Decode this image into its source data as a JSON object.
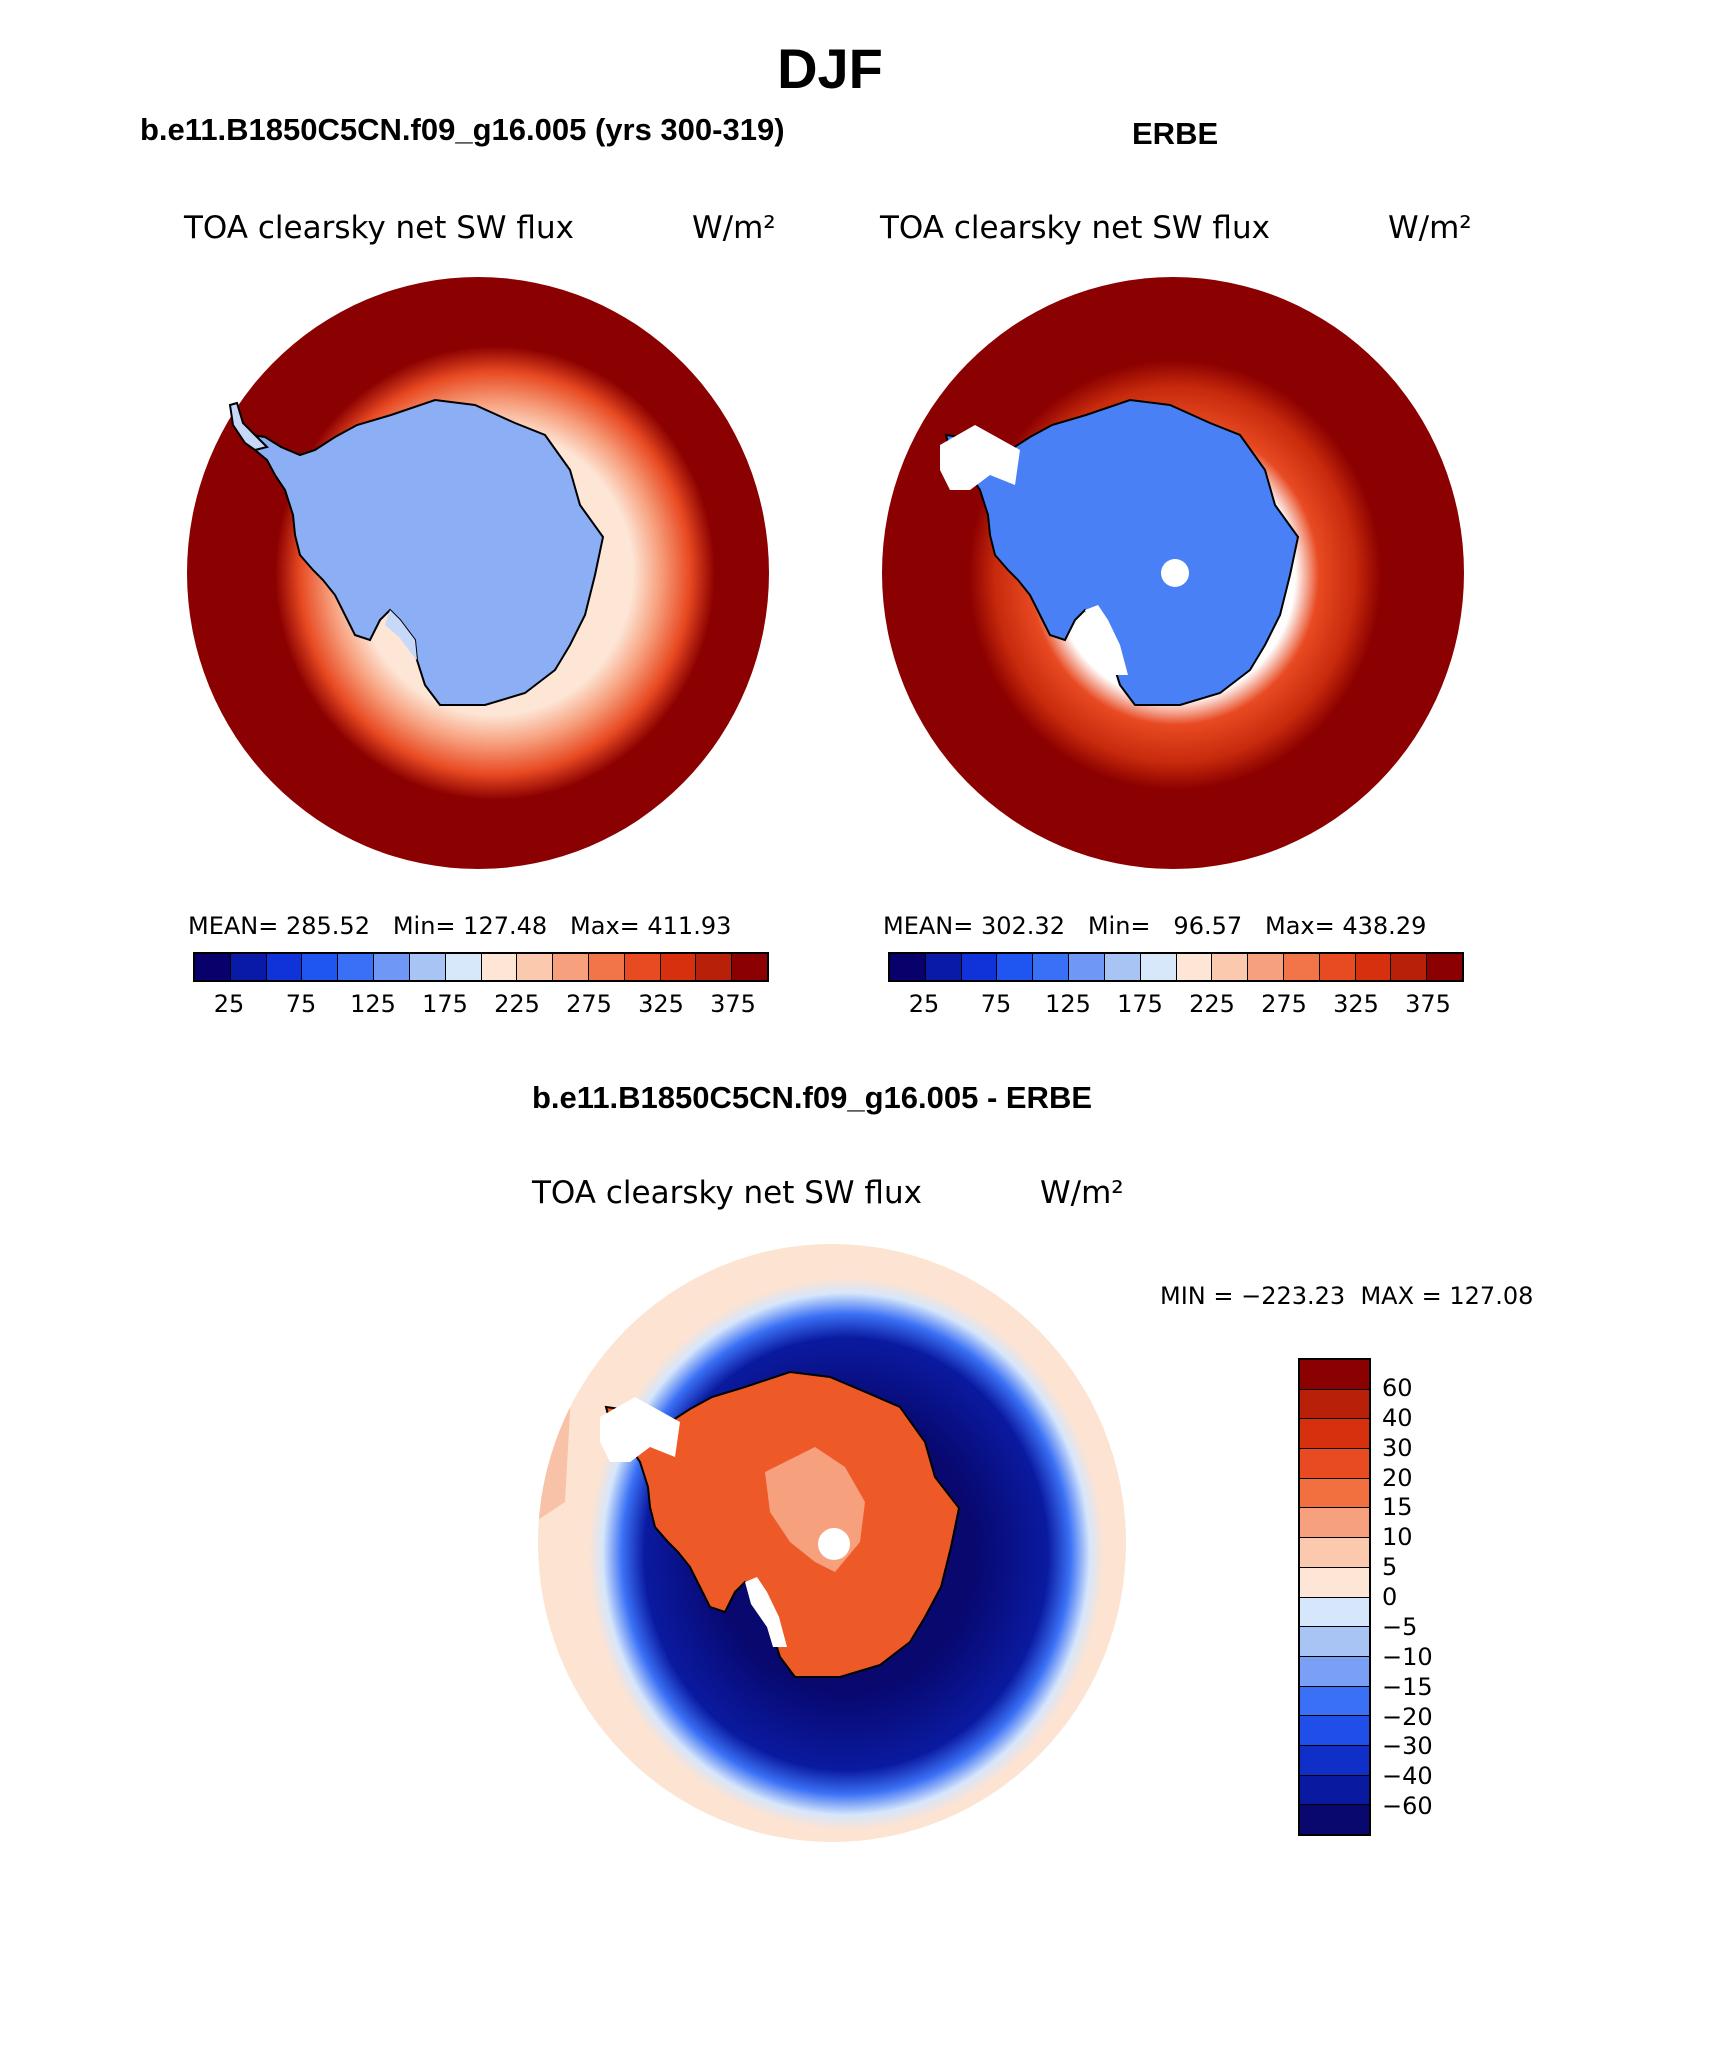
{
  "title": "DJF",
  "panels": [
    {
      "case_title": "b.e11.B1850C5CN.f09_g16.005 (yrs 300-319)",
      "variable": "TOA clearsky net SW flux",
      "units": "W/m²",
      "stats": "MEAN= 285.52   Min= 127.48   Max= 411.93",
      "ocean_color": "#8b0000",
      "continent_color": "#8caef5",
      "interior_color": "#97b5f7"
    },
    {
      "case_title": "ERBE",
      "variable": "TOA clearsky net SW flux",
      "units": "W/m²",
      "stats": "MEAN= 302.32   Min=   96.57   Max= 438.29",
      "ocean_color": "#8b0000",
      "continent_color": "#4a80f5",
      "interior_color": "#4a80f5"
    }
  ],
  "abs_colorbar": {
    "colors": [
      "#08006b",
      "#0a1aa8",
      "#0f33d9",
      "#1f55f0",
      "#3a70f5",
      "#6f97f5",
      "#a8c4f5",
      "#d8e8fb",
      "#fde6d6",
      "#fbc9ad",
      "#f7a07e",
      "#f27549",
      "#e84a22",
      "#d6300f",
      "#b8200a",
      "#8b0000"
    ],
    "labels": [
      "25",
      "75",
      "125",
      "175",
      "225",
      "275",
      "325",
      "375"
    ]
  },
  "diff_panel": {
    "case_title": "b.e11.B1850C5CN.f09_g16.005 - ERBE",
    "variable": "TOA clearsky net SW flux",
    "units": "W/m²",
    "minmax": "MIN = −223.23  MAX = 127.08",
    "ocean_color": "#fde3d2",
    "ring_color": "#08086f",
    "continent_color": "#ee5a27",
    "colorbar": {
      "colors": [
        "#8b0000",
        "#b8200a",
        "#d6300f",
        "#e84a22",
        "#f2703f",
        "#f7a07e",
        "#fbc9ad",
        "#fde6d6",
        "#d6e6fb",
        "#a8c4f5",
        "#7aa0f5",
        "#3a70f5",
        "#1f4fe8",
        "#0f2fc8",
        "#0a1aa0",
        "#08086f"
      ],
      "labels": [
        "60",
        "40",
        "30",
        "20",
        "15",
        "10",
        "5",
        "0",
        "−5",
        "−10",
        "−15",
        "−20",
        "−30",
        "−40",
        "−60"
      ]
    }
  }
}
